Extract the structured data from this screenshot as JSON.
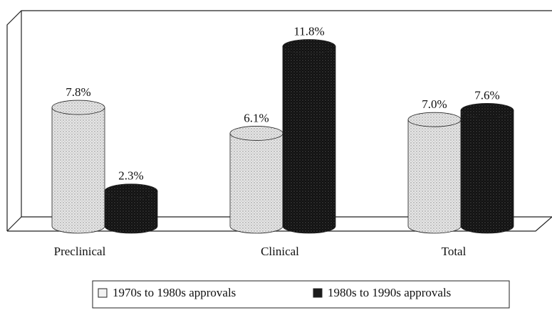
{
  "chart_data": {
    "type": "bar",
    "categories": [
      "Preclinical",
      "Clinical",
      "Total"
    ],
    "series": [
      {
        "name": "1970s to 1980s approvals",
        "color": "#d4d4d4",
        "values": [
          7.8,
          6.1,
          7.0
        ],
        "value_labels": [
          "7.8%",
          "6.1%",
          "7.0%"
        ]
      },
      {
        "name": "1980s to 1990s approvals",
        "color": "#1c1c1c",
        "values": [
          2.3,
          11.8,
          7.6
        ],
        "value_labels": [
          "2.3%",
          "11.8%",
          "7.6%"
        ]
      }
    ]
  }
}
